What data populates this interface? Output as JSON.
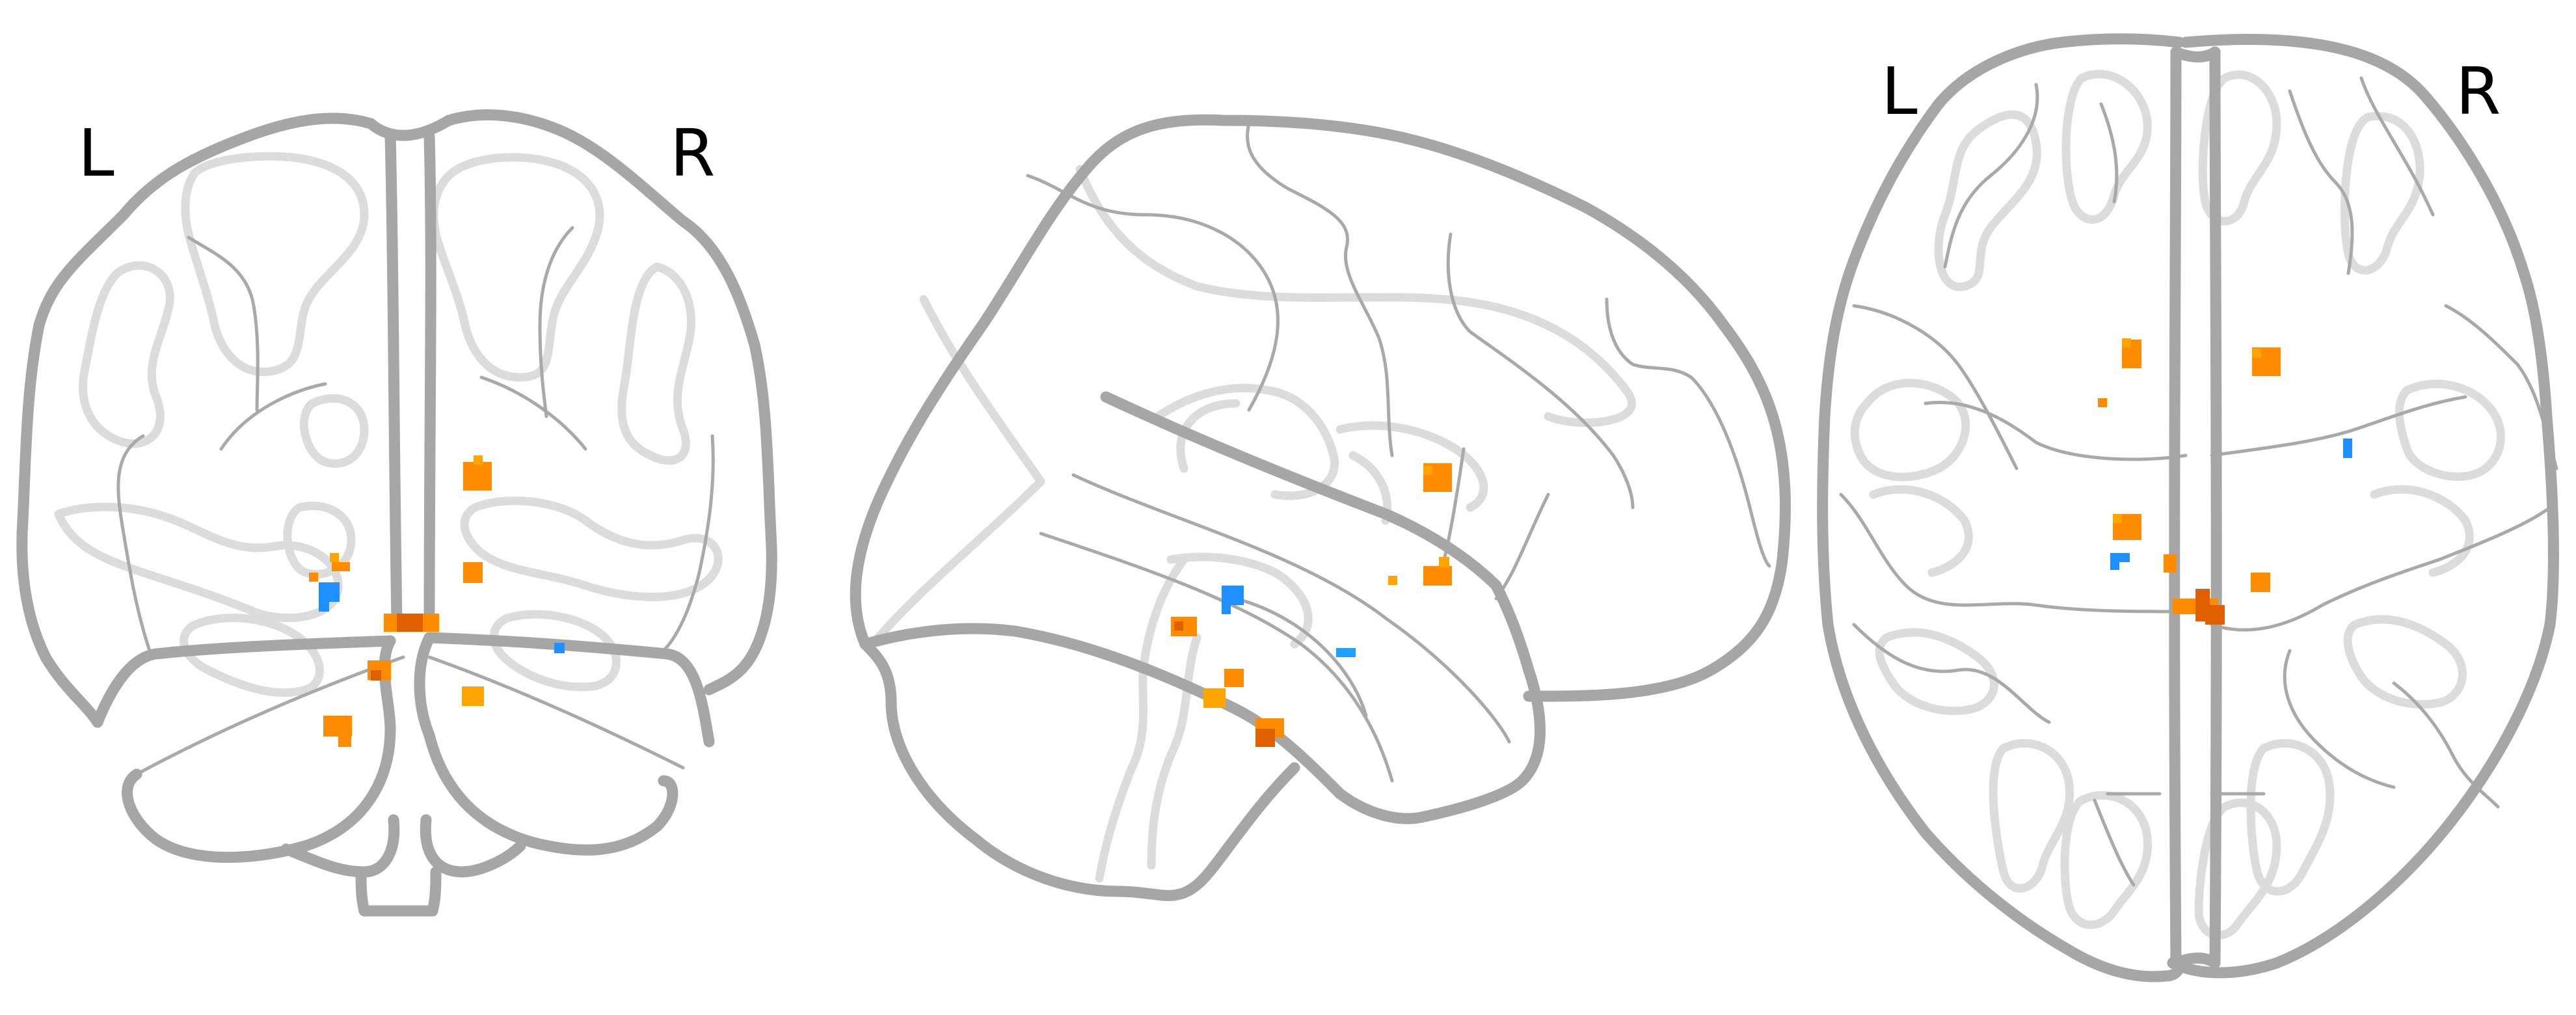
{
  "figure": {
    "background": "#ffffff",
    "views": [
      {
        "id": "coronal",
        "left_label": "L",
        "right_label": "R"
      },
      {
        "id": "sagittal"
      },
      {
        "id": "axial",
        "left_label": "L",
        "right_label": "R"
      }
    ],
    "colors": {
      "positive_light": "#ffa500",
      "positive": "#ff8c00",
      "positive_dark": "#e06000",
      "negative": "#1e90ff",
      "negative_light": "#1ea0ff",
      "outline": "#a6a6a6",
      "outline_faint": "#dcdcdc"
    }
  }
}
